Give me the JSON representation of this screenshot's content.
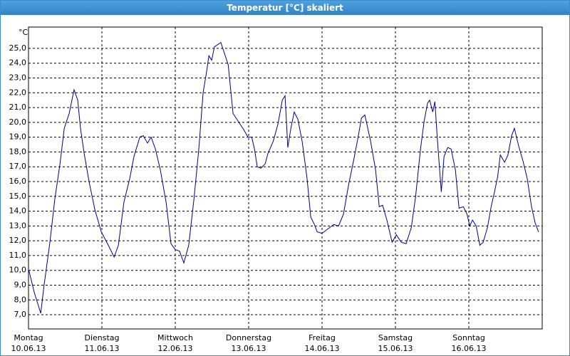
{
  "chart_data": {
    "type": "line",
    "title": "Temperatur [°C] skaliert",
    "y_unit": "°C",
    "x": [
      0,
      1.9,
      4.0,
      5.1,
      7.0,
      8.6,
      10.3,
      11.7,
      13.3,
      14.9,
      16.1,
      17.0,
      18.2,
      19.8,
      21.7,
      23.8,
      26.1,
      28.0,
      29.4,
      31.2,
      33.1,
      34.5,
      36.4,
      37.5,
      38.9,
      40.1,
      41.5,
      43.1,
      45.0,
      46.6,
      48.0,
      49.4,
      50.8,
      52.4,
      54.1,
      55.7,
      57.1,
      58.3,
      59.0,
      59.9,
      60.8,
      62.9,
      65.3,
      66.9,
      68.8,
      70.4,
      71.8,
      73.0,
      73.9,
      74.8,
      76.0,
      77.4,
      78.3,
      80.0,
      81.6,
      83.0,
      83.9,
      84.8,
      85.8,
      86.9,
      88.1,
      89.5,
      91.1,
      92.3,
      93.5,
      94.4,
      96.0,
      97.9,
      99.8,
      101.4,
      103.0,
      104.7,
      106.3,
      107.7,
      108.9,
      110.0,
      111.9,
      113.5,
      114.7,
      115.8,
      117.2,
      118.9,
      120.3,
      121.9,
      123.5,
      125.2,
      126.6,
      128.2,
      129.4,
      130.5,
      131.2,
      132.2,
      132.9,
      133.8,
      135.0,
      135.9,
      137.1,
      138.2,
      139.6,
      140.8,
      142.2,
      143.4,
      144.3,
      145.2,
      146.4,
      147.6,
      148.7,
      150.1,
      151.3,
      152.4,
      153.4,
      154.3,
      155.7,
      156.8,
      158.0,
      158.9,
      160.3,
      161.7,
      163.1,
      164.5,
      165.7,
      166.8
    ],
    "series": [
      {
        "color": "#00008b",
        "values": [
          10.1,
          8.5,
          7.1,
          9.0,
          11.9,
          14.8,
          17.2,
          19.6,
          20.6,
          22.2,
          21.5,
          19.6,
          17.9,
          16.0,
          14.1,
          12.6,
          11.7,
          10.9,
          11.7,
          14.6,
          16.2,
          17.7,
          19.0,
          19.1,
          18.6,
          19.0,
          18.2,
          16.8,
          14.6,
          11.8,
          11.4,
          11.3,
          10.5,
          11.7,
          14.8,
          18.2,
          22.0,
          23.5,
          24.5,
          24.2,
          25.1,
          25.4,
          23.9,
          20.6,
          20.0,
          19.5,
          19.0,
          19.0,
          18.2,
          17.0,
          16.9,
          17.2,
          17.9,
          18.7,
          19.9,
          21.5,
          21.8,
          18.3,
          19.6,
          20.7,
          20.2,
          18.7,
          16.2,
          13.6,
          13.1,
          12.6,
          12.5,
          12.8,
          13.1,
          13.0,
          13.8,
          15.8,
          17.4,
          18.9,
          20.3,
          20.5,
          18.7,
          16.8,
          14.3,
          14.4,
          13.4,
          11.9,
          12.4,
          11.9,
          11.8,
          12.9,
          15.0,
          18.2,
          20.1,
          21.3,
          21.5,
          20.7,
          21.4,
          18.6,
          15.3,
          17.7,
          18.3,
          18.2,
          16.8,
          14.2,
          14.3,
          13.8,
          13.0,
          13.4,
          13.0,
          11.7,
          11.9,
          12.9,
          14.3,
          15.3,
          16.3,
          17.8,
          17.3,
          17.8,
          19.1,
          19.6,
          18.4,
          17.4,
          16.2,
          14.3,
          13.2,
          12.6
        ]
      }
    ],
    "xlim": [
      0,
      168
    ],
    "xticks": [
      {
        "value": 0,
        "label": "Montag",
        "date": "10.06.13"
      },
      {
        "value": 24,
        "label": "Dienstag",
        "date": "11.06.13"
      },
      {
        "value": 48,
        "label": "Mittwoch",
        "date": "12.06.13"
      },
      {
        "value": 72,
        "label": "Donnerstag",
        "date": "13.06.13"
      },
      {
        "value": 96,
        "label": "Freitag",
        "date": "14.06.13"
      },
      {
        "value": 120,
        "label": "Samstag",
        "date": "15.06.13"
      },
      {
        "value": 144,
        "label": "Sonntag",
        "date": "16.06.13"
      }
    ],
    "ylim": [
      6.04,
      26.44
    ],
    "yticks": [
      {
        "value": 7,
        "label": "7,0"
      },
      {
        "value": 8,
        "label": "8,0"
      },
      {
        "value": 9,
        "label": "9,0"
      },
      {
        "value": 10,
        "label": "10,0"
      },
      {
        "value": 11,
        "label": "11,0"
      },
      {
        "value": 12,
        "label": "12,0"
      },
      {
        "value": 13,
        "label": "13,0"
      },
      {
        "value": 14,
        "label": "14,0"
      },
      {
        "value": 15,
        "label": "15,0"
      },
      {
        "value": 16,
        "label": "16,0"
      },
      {
        "value": 17,
        "label": "17,0"
      },
      {
        "value": 18,
        "label": "18,0"
      },
      {
        "value": 19,
        "label": "19,0"
      },
      {
        "value": 20,
        "label": "20,0"
      },
      {
        "value": 21,
        "label": "21,0"
      },
      {
        "value": 22,
        "label": "22,0"
      },
      {
        "value": 23,
        "label": "23,0"
      },
      {
        "value": 24,
        "label": "24,0"
      },
      {
        "value": 25,
        "label": "25,0"
      }
    ],
    "grid": true
  }
}
